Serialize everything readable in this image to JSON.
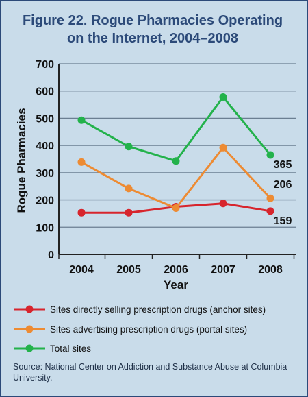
{
  "figure": {
    "title_line1": "Figure 22. Rogue Pharmacies Operating",
    "title_line2": "on the Internet, 2004–2008",
    "source": "Source: National Center on Addiction and Substance Abuse at Columbia University."
  },
  "chart_data": {
    "type": "line",
    "title": "Figure 22. Rogue Pharmacies Operating on the Internet, 2004–2008",
    "xlabel": "Year",
    "ylabel": "Rogue Pharmacies",
    "x": [
      "2004",
      "2005",
      "2006",
      "2007",
      "2008"
    ],
    "ylim": [
      0,
      700
    ],
    "yticks": [
      0,
      100,
      200,
      300,
      400,
      500,
      600,
      700
    ],
    "grid": true,
    "legend_position": "bottom",
    "series": [
      {
        "name": "Sites directly selling prescription drugs (anchor sites)",
        "color": "#d7252d",
        "values": [
          153,
          153,
          175,
          187,
          159
        ],
        "end_label": "159"
      },
      {
        "name": "Sites advertising prescription drugs (portal sites)",
        "color": "#ed8b33",
        "values": [
          339,
          242,
          170,
          392,
          206
        ],
        "end_label": "206"
      },
      {
        "name": "Total sites",
        "color": "#23b24b",
        "values": [
          493,
          396,
          343,
          578,
          365
        ],
        "end_label": "365"
      }
    ]
  }
}
